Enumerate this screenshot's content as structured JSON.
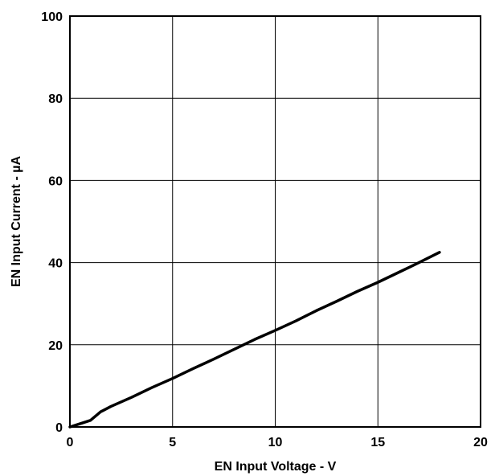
{
  "chart_data": {
    "type": "line",
    "title": "",
    "xlabel": "EN Input Voltage - V",
    "ylabel": "EN Input Current - µA",
    "xlim": [
      0,
      20
    ],
    "ylim": [
      0,
      100
    ],
    "xticks": [
      0,
      5,
      10,
      15,
      20
    ],
    "yticks": [
      0,
      20,
      40,
      60,
      80,
      100
    ],
    "xtick_labels": [
      "0",
      "5",
      "10",
      "15",
      "20"
    ],
    "ytick_labels": [
      "0",
      "20",
      "40",
      "60",
      "80",
      "100"
    ],
    "grid": true,
    "legend": "none",
    "series": [
      {
        "color": "#000000",
        "x": [
          0,
          0.5,
          1.0,
          1.5,
          2,
          3,
          4,
          5,
          6,
          7,
          8,
          9,
          10,
          11,
          12,
          13,
          14,
          15,
          16,
          17,
          18
        ],
        "y": [
          0,
          0.8,
          1.6,
          3.7,
          5.0,
          7.2,
          9.6,
          11.8,
          14.2,
          16.5,
          18.9,
          21.3,
          23.5,
          25.8,
          28.3,
          30.6,
          33.0,
          35.2,
          37.6,
          40.0,
          42.5
        ]
      }
    ]
  }
}
